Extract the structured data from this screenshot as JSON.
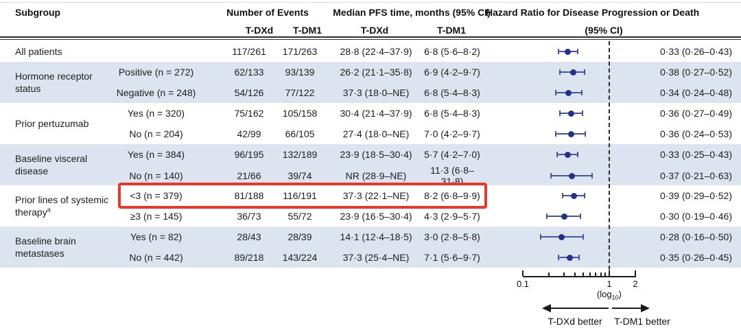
{
  "header": {
    "subgroup": "Subgroup",
    "events": "Number of Events",
    "events_sub": [
      "T-DXd",
      "T-DM1"
    ],
    "pfs": "Median PFS time, months (95% CI)",
    "pfs_sub": [
      "T-DXd",
      "T-DM1"
    ],
    "hr_line1": "Hazard Ratio for Disease Progression or Death",
    "hr_line2": "(95% CI)"
  },
  "footer": {
    "axis_ticks": [
      "0.1",
      "1",
      "2"
    ],
    "log_pre": "(log",
    "log_sub": "10",
    "log_post": ")",
    "left_better": "T-DXd better",
    "right_better": "T-DM1 better"
  },
  "colors": {
    "shaded_band": "#dce5ef",
    "marker_dot": "#24308a",
    "ci_line": "#44549f",
    "highlight_box": "#e8362a",
    "reference_line": "#2b2b2b"
  },
  "chart_data": {
    "type": "forest",
    "axis": {
      "scale": "log10",
      "min": 0.1,
      "max": 2,
      "ticks": [
        0.1,
        1,
        2
      ],
      "minor_ticks": [
        0.2,
        0.3,
        0.4,
        0.5,
        0.6,
        0.7,
        0.8,
        0.9
      ],
      "reference_line": 1,
      "label": "(log10)",
      "left_arrow_label": "T-DXd better",
      "right_arrow_label": "T-DM1 better"
    },
    "highlight": {
      "row_level": "<3 (n = 379)",
      "box_color": "#e8362a"
    },
    "groups": [
      {
        "label": "All patients",
        "shaded": false,
        "rows": [
          {
            "level": "",
            "events_tdxd": "117/261",
            "events_tdm1": "171/263",
            "pfs_tdxd": "28·8 (22·4–37·9)",
            "pfs_tdm1": "6·8 (5·6–8·2)",
            "hr": 0.33,
            "ci": [
              0.26,
              0.43
            ],
            "hr_text": "0·33 (0·26–0·43)",
            "highlighted": false
          }
        ]
      },
      {
        "label": "Hormone receptor status",
        "shaded": true,
        "rows": [
          {
            "level": "Positive (n = 272)",
            "events_tdxd": "62/133",
            "events_tdm1": "93/139",
            "pfs_tdxd": "26·2 (21·1–35·8)",
            "pfs_tdm1": "6·9 (4·2–9·7)",
            "hr": 0.38,
            "ci": [
              0.27,
              0.52
            ],
            "hr_text": "0·38 (0·27–0·52)",
            "highlighted": false
          },
          {
            "level": "Negative (n = 248)",
            "events_tdxd": "54/126",
            "events_tdm1": "77/122",
            "pfs_tdxd": "37·3 (18·0–NE)",
            "pfs_tdm1": "6·8 (5·4–8·3)",
            "hr": 0.34,
            "ci": [
              0.24,
              0.48
            ],
            "hr_text": "0·34 (0·24–0·48)",
            "highlighted": false
          }
        ]
      },
      {
        "label": "Prior pertuzumab",
        "shaded": false,
        "rows": [
          {
            "level": "Yes (n = 320)",
            "events_tdxd": "75/162",
            "events_tdm1": "105/158",
            "pfs_tdxd": "30·4 (21·4–37·9)",
            "pfs_tdm1": "6·8 (5·4–8·3)",
            "hr": 0.36,
            "ci": [
              0.27,
              0.49
            ],
            "hr_text": "0·36 (0·27–0·49)",
            "highlighted": false
          },
          {
            "level": "No (n = 204)",
            "events_tdxd": "42/99",
            "events_tdm1": "66/105",
            "pfs_tdxd": "27·4 (18·0–NE)",
            "pfs_tdm1": "7·0 (4·2–9·7)",
            "hr": 0.36,
            "ci": [
              0.24,
              0.53
            ],
            "hr_text": "0·36 (0·24–0·53)",
            "highlighted": false
          }
        ]
      },
      {
        "label": "Baseline visceral disease",
        "shaded": true,
        "rows": [
          {
            "level": "Yes (n = 384)",
            "events_tdxd": "96/195",
            "events_tdm1": "132/189",
            "pfs_tdxd": "23·9 (18·5–30·4)",
            "pfs_tdm1": "5·7 (4·2–7·0)",
            "hr": 0.33,
            "ci": [
              0.25,
              0.43
            ],
            "hr_text": "0·33 (0·25–0·43)",
            "highlighted": false
          },
          {
            "level": "No (n = 140)",
            "events_tdxd": "21/66",
            "events_tdm1": "39/74",
            "pfs_tdxd": "NR (28·9–NE)",
            "pfs_tdm1": "11·3 (6·8–31·8)",
            "hr": 0.37,
            "ci": [
              0.21,
              0.63
            ],
            "hr_text": "0·37 (0·21–0·63)",
            "highlighted": false
          }
        ]
      },
      {
        "label": "Prior lines of systemic therapy",
        "label_sup": "a",
        "shaded": false,
        "rows": [
          {
            "level": "<3 (n = 379)",
            "events_tdxd": "81/188",
            "events_tdm1": "116/191",
            "pfs_tdxd": "37·3 (22·1–NE)",
            "pfs_tdm1": "8·2 (6·8–9·9)",
            "hr": 0.39,
            "ci": [
              0.29,
              0.52
            ],
            "hr_text": "0·39 (0·29–0·52)",
            "highlighted": true
          },
          {
            "level": "≥3 (n = 145)",
            "events_tdxd": "36/73",
            "events_tdm1": "55/72",
            "pfs_tdxd": "23·9 (16·5–30·4)",
            "pfs_tdm1": "4·3 (2·9–5·7)",
            "hr": 0.3,
            "ci": [
              0.19,
              0.46
            ],
            "hr_text": "0·30 (0·19–0·46)",
            "highlighted": false
          }
        ]
      },
      {
        "label": "Baseline brain metastases",
        "shaded": true,
        "rows": [
          {
            "level": "Yes (n = 82)",
            "events_tdxd": "28/43",
            "events_tdm1": "28/39",
            "pfs_tdxd": "14·1 (12·4–18·5)",
            "pfs_tdm1": "3·0 (2·8–5·8)",
            "hr": 0.28,
            "ci": [
              0.16,
              0.5
            ],
            "hr_text": "0·28 (0·16–0·50)",
            "highlighted": false
          },
          {
            "level": "No (n = 442)",
            "events_tdxd": "89/218",
            "events_tdm1": "143/224",
            "pfs_tdxd": "37·3 (25·4–NE)",
            "pfs_tdm1": "7·1 (5·6–9·7)",
            "hr": 0.35,
            "ci": [
              0.26,
              0.45
            ],
            "hr_text": "0·35 (0·26–0·45)",
            "highlighted": false
          }
        ]
      }
    ]
  }
}
